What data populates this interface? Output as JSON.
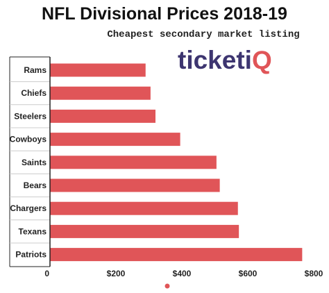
{
  "header": {
    "title": "NFL Divisional Prices 2018-19",
    "subtitle": "Cheapest secondary market listing",
    "logo_text": "ticketiQ"
  },
  "colors": {
    "bar": "#e05558",
    "logo": "#3d3570",
    "logo_accent": "#e05558",
    "axis": "#222222"
  },
  "chart_data": {
    "type": "bar",
    "orientation": "horizontal",
    "title": "NFL Divisional Prices 2018-19",
    "subtitle": "Cheapest secondary market listing",
    "categories": [
      "Rams",
      "Chiefs",
      "Steelers",
      "Cowboys",
      "Saints",
      "Bears",
      "Chargers",
      "Texans",
      "Patriots"
    ],
    "values": [
      290,
      305,
      320,
      395,
      505,
      515,
      570,
      573,
      765
    ],
    "xlim": [
      0,
      800
    ],
    "xticks": [
      0,
      200,
      400,
      600,
      800
    ],
    "xtick_labels": [
      "0",
      "$200",
      "$400",
      "$600",
      "$800"
    ],
    "grid": false,
    "legend": "none"
  }
}
